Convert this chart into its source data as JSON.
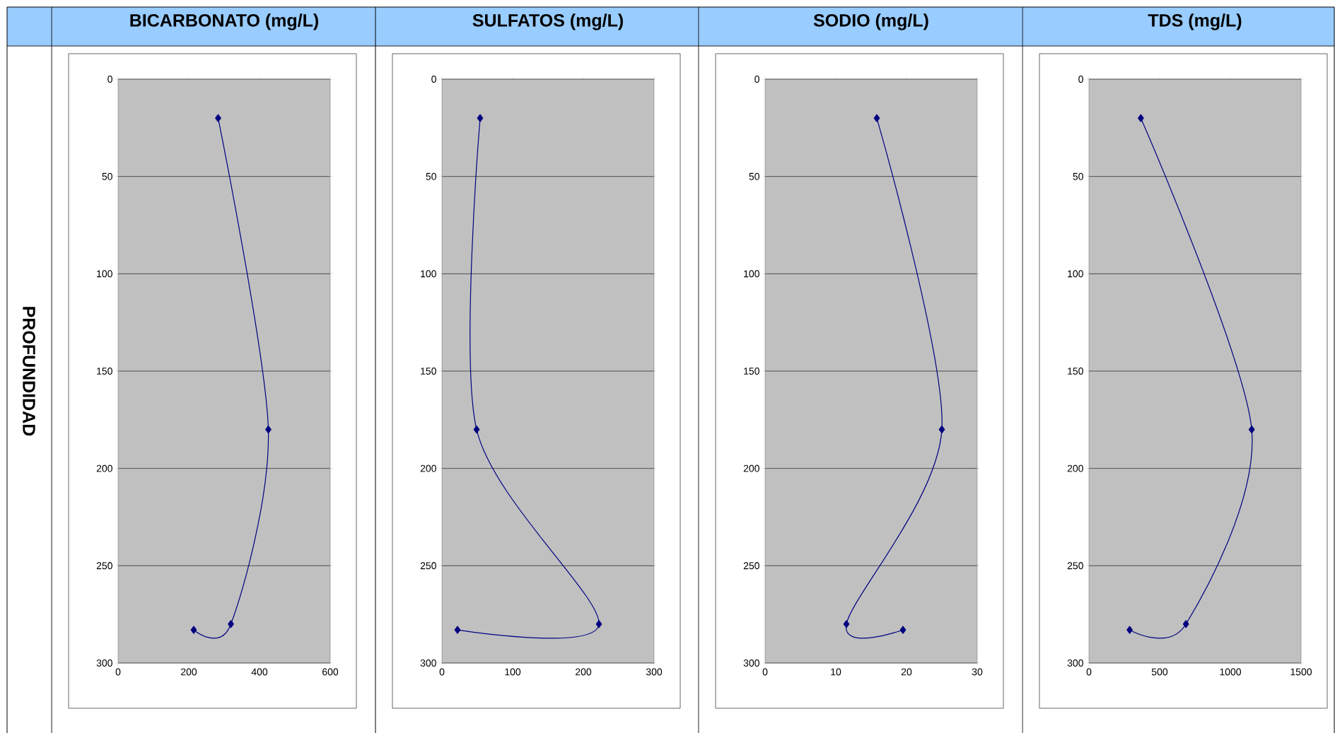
{
  "chart_data": [
    {
      "type": "line",
      "title": "BICARBONATO (mg/L)",
      "ylabel": "PROFUNDIDAD",
      "x": [
        283,
        425,
        319,
        214
      ],
      "values": [
        20,
        180,
        280,
        283
      ],
      "color": "#000080",
      "marker": "diamond",
      "xlim": [
        0,
        600
      ],
      "xticks": [
        0,
        200,
        400,
        600
      ],
      "ylim": [
        300,
        0
      ],
      "yticks": [
        0,
        50,
        100,
        150,
        200,
        250,
        300
      ],
      "grid": "y"
    },
    {
      "type": "line",
      "title": "SULFATOS (mg/L)",
      "x": [
        54,
        49,
        222,
        22
      ],
      "values": [
        20,
        180,
        280,
        283
      ],
      "color": "#000080",
      "marker": "diamond",
      "xlim": [
        0,
        300
      ],
      "xticks": [
        0,
        100,
        200,
        300
      ],
      "ylim": [
        300,
        0
      ],
      "yticks": [
        0,
        50,
        100,
        150,
        200,
        250,
        300
      ],
      "grid": "y"
    },
    {
      "type": "line",
      "title": "SODIO (mg/L)",
      "x": [
        15.8,
        25.0,
        11.5,
        19.5
      ],
      "values": [
        20,
        180,
        280,
        283
      ],
      "color": "#000080",
      "marker": "diamond",
      "xlim": [
        0,
        30
      ],
      "xticks": [
        0,
        10,
        20,
        30
      ],
      "ylim": [
        300,
        0
      ],
      "yticks": [
        0,
        50,
        100,
        150,
        200,
        250,
        300
      ],
      "grid": "y"
    },
    {
      "type": "line",
      "title": "TDS (mg/L)",
      "x": [
        367,
        1151,
        686,
        288
      ],
      "values": [
        20,
        180,
        280,
        283
      ],
      "color": "#000080",
      "marker": "diamond",
      "xlim": [
        0,
        1500
      ],
      "xticks": [
        0,
        500,
        1000,
        1500
      ],
      "ylim": [
        300,
        0
      ],
      "yticks": [
        0,
        50,
        100,
        150,
        200,
        250,
        300
      ],
      "grid": "y"
    }
  ]
}
